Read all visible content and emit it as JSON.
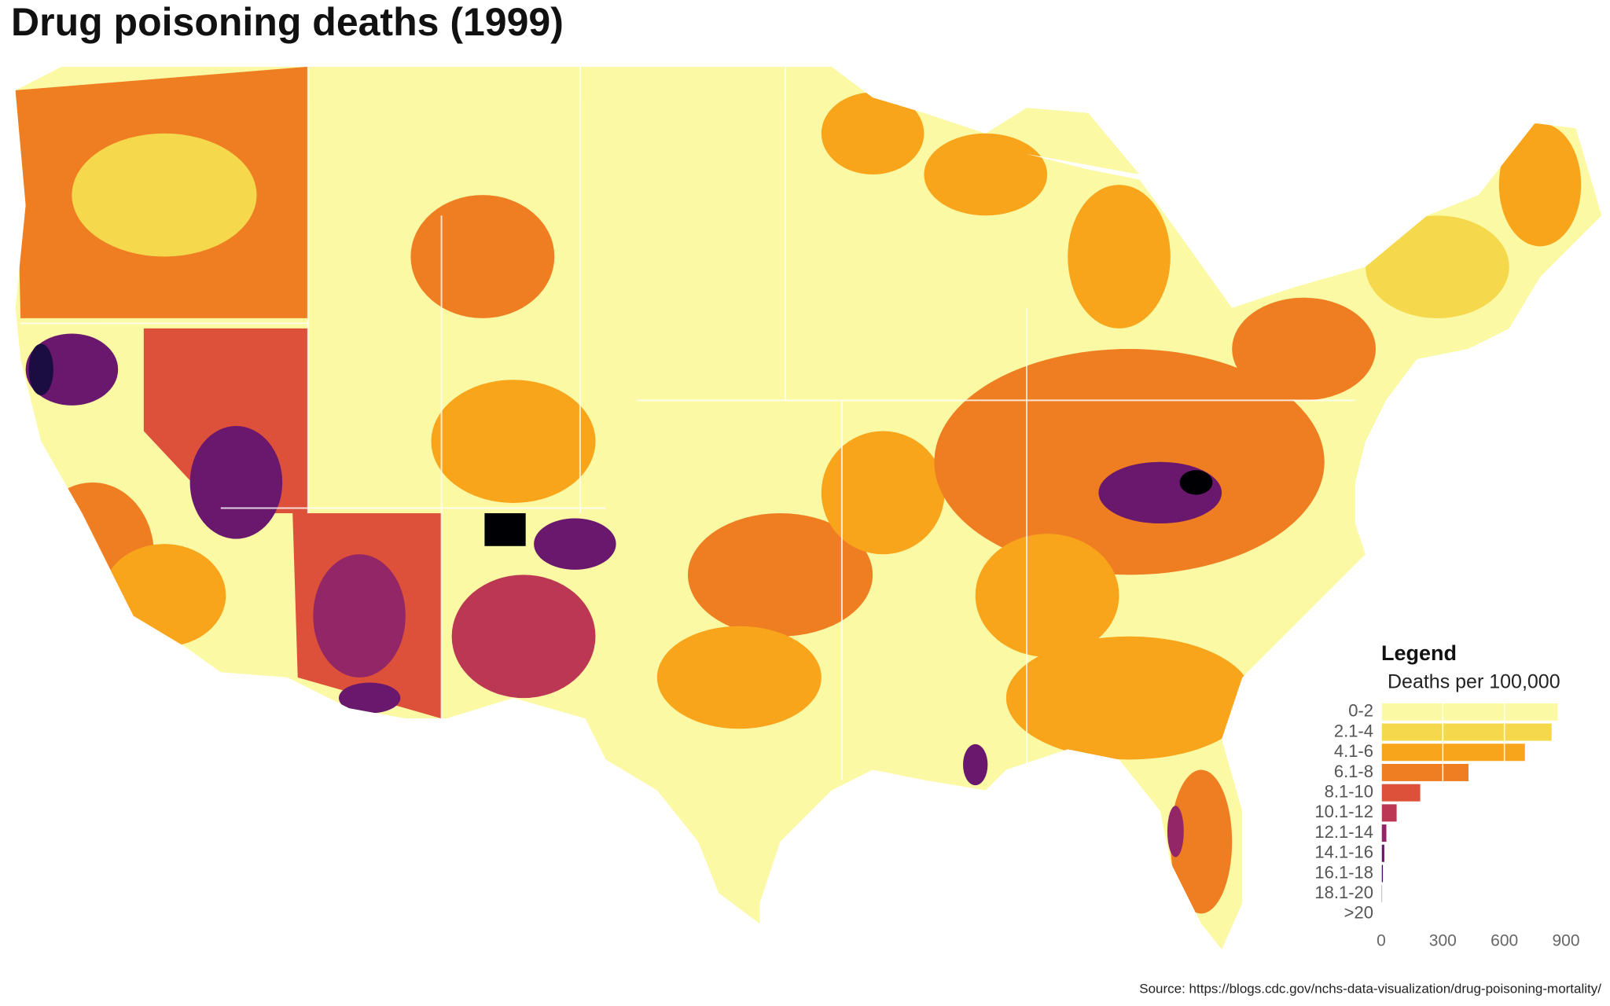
{
  "chart_data": {
    "type": "bar",
    "title": "Drug poisoning deaths (1999)",
    "legend_title": "Legend",
    "subtitle": "Deaths per 100,000",
    "categories": [
      "0-2",
      "2.1-4",
      "4.1-6",
      "6.1-8",
      "8.1-10",
      "10.1-12",
      "12.1-14",
      "14.1-16",
      "16.1-18",
      "18.1-20",
      ">20"
    ],
    "colors": [
      "#fbf9a3",
      "#f6d84c",
      "#f9a51b",
      "#ef7d22",
      "#dd513a",
      "#bc3754",
      "#932667",
      "#6a176e",
      "#420a68",
      "#1b0c41",
      "#000004"
    ],
    "values": [
      860,
      830,
      700,
      425,
      190,
      75,
      25,
      15,
      8,
      4,
      0
    ],
    "xlim": [
      0,
      900
    ],
    "xticks": [
      0,
      300,
      600,
      900
    ],
    "grid": true,
    "source": "Source: https://blogs.cdc.gov/nchs-data-visualization/drug-poisoning-mortality/"
  }
}
